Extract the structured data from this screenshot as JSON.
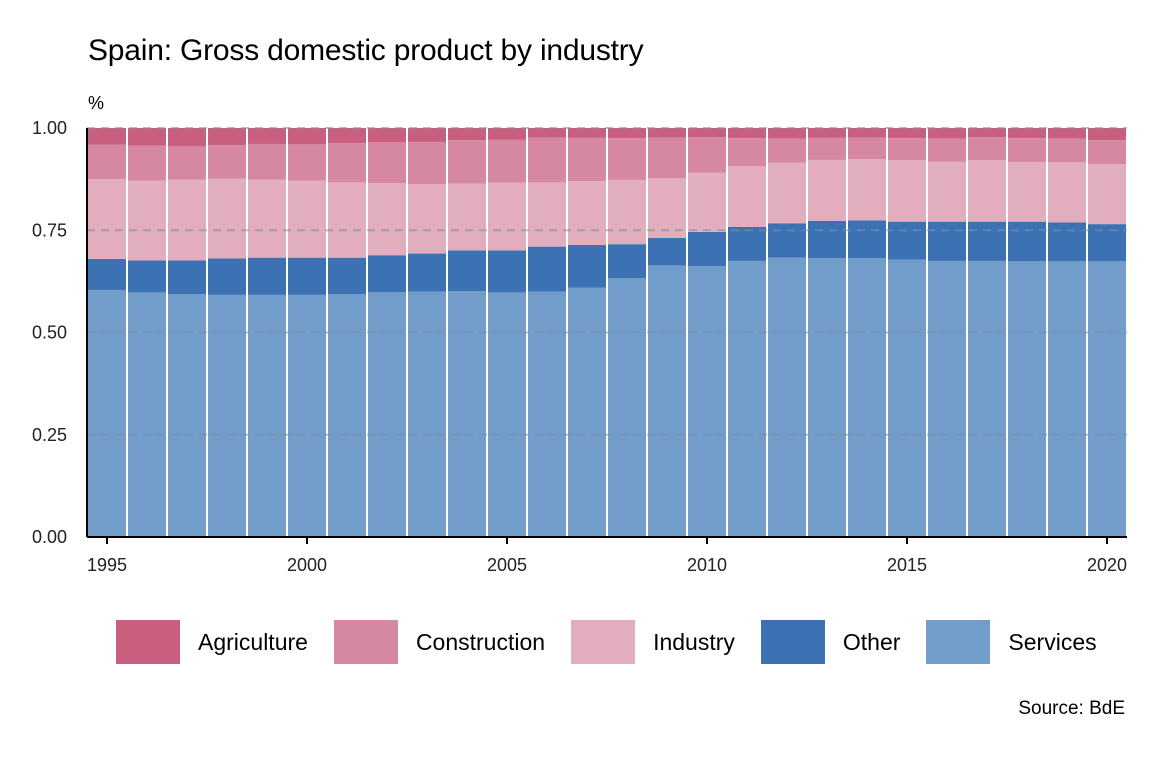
{
  "chart_data": {
    "type": "bar",
    "stacked": true,
    "title": "Spain: Gross domestic product by industry",
    "unit_label": "%",
    "source": "Source: BdE",
    "years": [
      1995,
      1996,
      1997,
      1998,
      1999,
      2000,
      2001,
      2002,
      2003,
      2004,
      2005,
      2006,
      2007,
      2008,
      2009,
      2010,
      2011,
      2012,
      2013,
      2014,
      2015,
      2016,
      2017,
      2018,
      2019,
      2020
    ],
    "x_ticks": [
      "1995",
      "2000",
      "2005",
      "2010",
      "2015",
      "2020"
    ],
    "y_ticks": [
      "0.00",
      "0.25",
      "0.50",
      "0.75",
      "1.00"
    ],
    "ylim": [
      0,
      1
    ],
    "grid": "horizontal dashed",
    "legend_position": "bottom",
    "series": [
      {
        "name": "Services",
        "color": "#729cc9",
        "values": [
          0.604,
          0.598,
          0.594,
          0.592,
          0.592,
          0.592,
          0.594,
          0.599,
          0.6,
          0.601,
          0.598,
          0.6,
          0.61,
          0.633,
          0.664,
          0.662,
          0.675,
          0.683,
          0.682,
          0.682,
          0.678,
          0.675,
          0.675,
          0.674,
          0.674,
          0.674
        ]
      },
      {
        "name": "Other",
        "color": "#3c72b4",
        "values": [
          0.076,
          0.078,
          0.082,
          0.089,
          0.091,
          0.091,
          0.089,
          0.09,
          0.093,
          0.1,
          0.103,
          0.11,
          0.104,
          0.083,
          0.067,
          0.084,
          0.083,
          0.084,
          0.091,
          0.092,
          0.093,
          0.096,
          0.096,
          0.097,
          0.095,
          0.091
        ]
      },
      {
        "name": "Industry",
        "color": "#e2adbd",
        "values": [
          0.195,
          0.195,
          0.198,
          0.195,
          0.191,
          0.188,
          0.184,
          0.176,
          0.17,
          0.163,
          0.165,
          0.157,
          0.156,
          0.157,
          0.146,
          0.145,
          0.149,
          0.148,
          0.149,
          0.15,
          0.15,
          0.147,
          0.15,
          0.146,
          0.147,
          0.147
        ]
      },
      {
        "name": "Construction",
        "color": "#d5889f",
        "values": [
          0.084,
          0.086,
          0.081,
          0.082,
          0.087,
          0.089,
          0.096,
          0.1,
          0.103,
          0.106,
          0.105,
          0.11,
          0.106,
          0.102,
          0.1,
          0.087,
          0.068,
          0.059,
          0.054,
          0.053,
          0.054,
          0.056,
          0.057,
          0.058,
          0.058,
          0.058
        ]
      },
      {
        "name": "Agriculture",
        "color": "#c85f7e",
        "values": [
          0.041,
          0.043,
          0.045,
          0.042,
          0.039,
          0.04,
          0.037,
          0.035,
          0.034,
          0.03,
          0.029,
          0.023,
          0.024,
          0.025,
          0.023,
          0.022,
          0.025,
          0.026,
          0.024,
          0.023,
          0.025,
          0.026,
          0.022,
          0.025,
          0.026,
          0.03
        ]
      }
    ],
    "legend_order": [
      "Agriculture",
      "Construction",
      "Industry",
      "Other",
      "Services"
    ]
  },
  "legend": [
    {
      "label": "Agriculture",
      "color": "#c85f7e"
    },
    {
      "label": "Construction",
      "color": "#d5889f"
    },
    {
      "label": "Industry",
      "color": "#e2adbd"
    },
    {
      "label": "Other",
      "color": "#3c72b4"
    },
    {
      "label": "Services",
      "color": "#729cc9"
    }
  ]
}
